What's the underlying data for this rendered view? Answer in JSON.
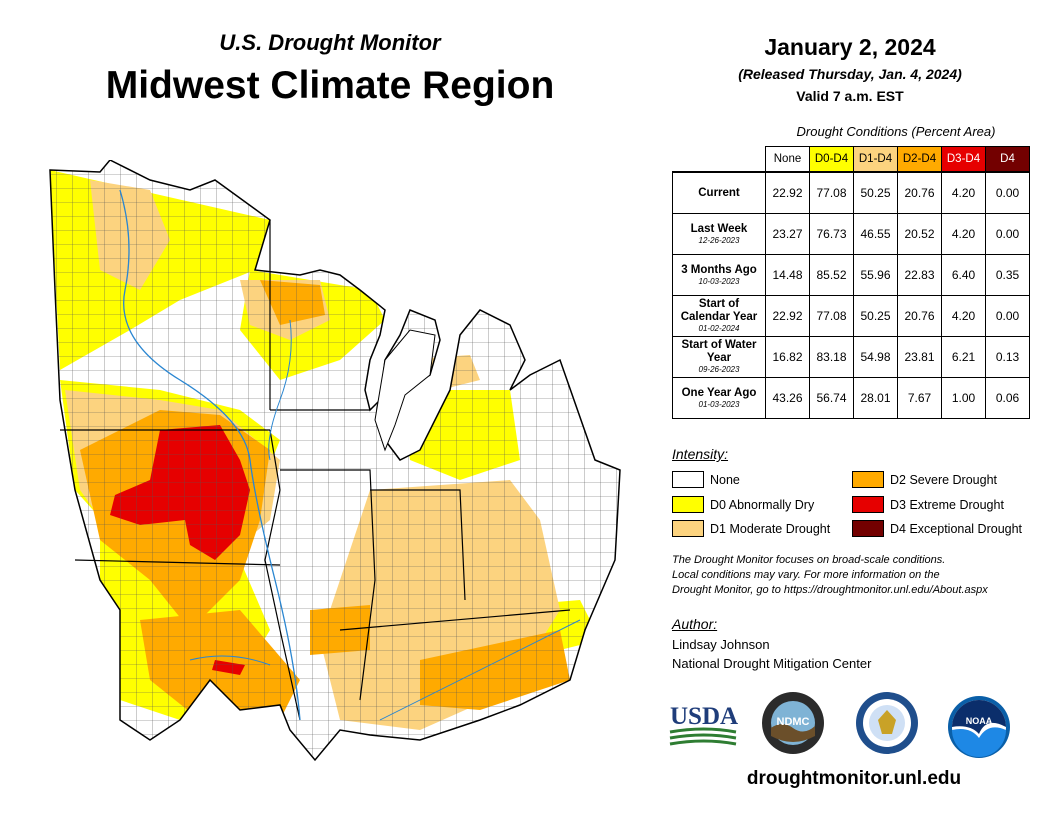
{
  "header": {
    "subtitle": "U.S. Drought Monitor",
    "title": "Midwest Climate Region"
  },
  "release": {
    "date": "January 2, 2024",
    "released": "(Released Thursday, Jan. 4, 2024)",
    "valid": "Valid 7 a.m. EST"
  },
  "conditions_table": {
    "title": "Drought Conditions (Percent Area)",
    "columns": [
      "None",
      "D0-D4",
      "D1-D4",
      "D2-D4",
      "D3-D4",
      "D4"
    ],
    "column_colors": [
      "#ffffff",
      "#ffff00",
      "#fcd37f",
      "#ffaa00",
      "#e60000",
      "#730000"
    ],
    "rows": [
      {
        "label": "Current",
        "date": "",
        "values": [
          "22.92",
          "77.08",
          "50.25",
          "20.76",
          "4.20",
          "0.00"
        ]
      },
      {
        "label": "Last Week",
        "date": "12-26-2023",
        "values": [
          "23.27",
          "76.73",
          "46.55",
          "20.52",
          "4.20",
          "0.00"
        ]
      },
      {
        "label": "3 Months Ago",
        "date": "10-03-2023",
        "values": [
          "14.48",
          "85.52",
          "55.96",
          "22.83",
          "6.40",
          "0.35"
        ]
      },
      {
        "label": "Start of Calendar Year",
        "date": "01-02-2024",
        "values": [
          "22.92",
          "77.08",
          "50.25",
          "20.76",
          "4.20",
          "0.00"
        ]
      },
      {
        "label": "Start of Water Year",
        "date": "09-26-2023",
        "values": [
          "16.82",
          "83.18",
          "54.98",
          "23.81",
          "6.21",
          "0.13"
        ]
      },
      {
        "label": "One Year Ago",
        "date": "01-03-2023",
        "values": [
          "43.26",
          "56.74",
          "28.01",
          "7.67",
          "1.00",
          "0.06"
        ]
      }
    ]
  },
  "legend": {
    "title": "Intensity:",
    "items": [
      {
        "label": "None",
        "color": "#ffffff"
      },
      {
        "label": "D0 Abnormally Dry",
        "color": "#ffff00"
      },
      {
        "label": "D1 Moderate Drought",
        "color": "#fcd37f"
      },
      {
        "label": "D2 Severe Drought",
        "color": "#ffaa00"
      },
      {
        "label": "D3 Extreme Drought",
        "color": "#e60000"
      },
      {
        "label": "D4 Exceptional Drought",
        "color": "#730000"
      }
    ]
  },
  "note": {
    "line1": "The Drought Monitor focuses on broad-scale conditions.",
    "line2": "Local conditions may vary. For more information on the",
    "line3": "Drought Monitor, go to https://droughtmonitor.unl.edu/About.aspx"
  },
  "author": {
    "title": "Author:",
    "name": "Lindsay Johnson",
    "org": "National Drought Mitigation Center"
  },
  "logos": {
    "usda": "USDA",
    "ndmc": "NDMC",
    "noaa": "NOAA"
  },
  "website": "droughtmonitor.unl.edu"
}
